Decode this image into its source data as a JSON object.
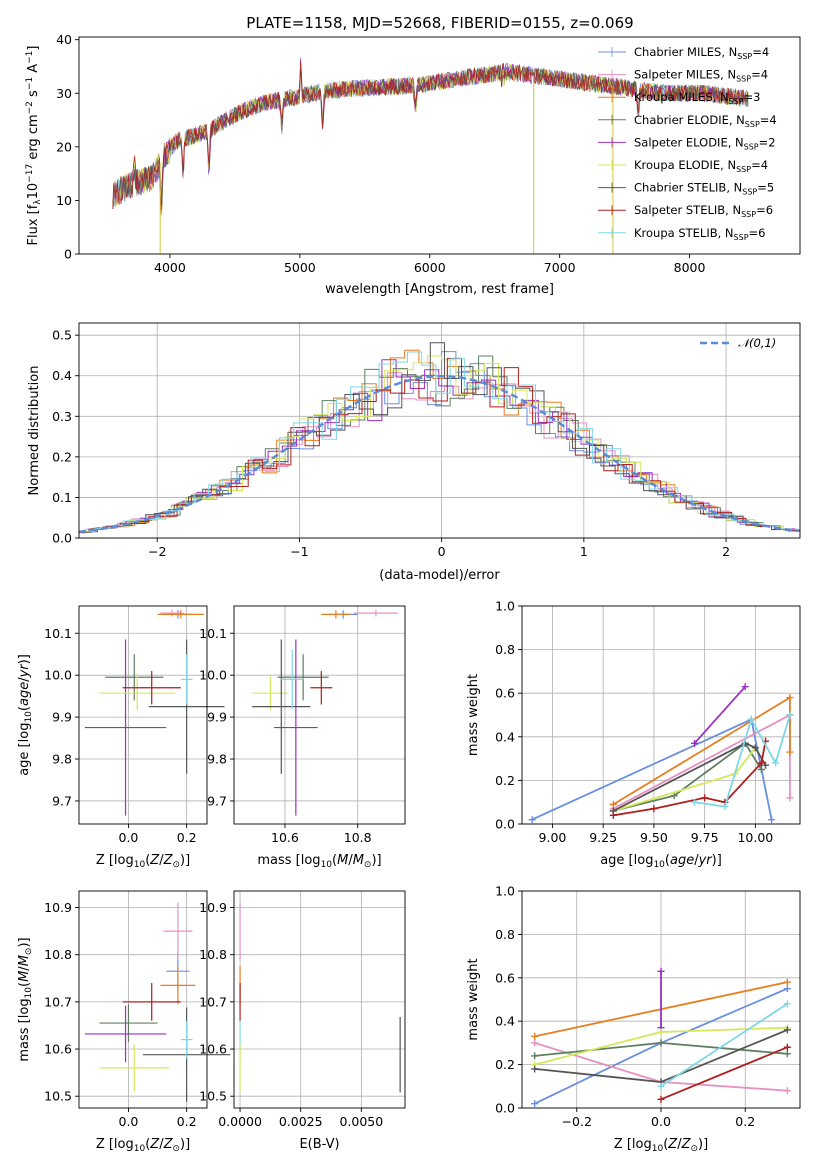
{
  "title": "PLATE=1158, MJD=52668, FIBERID=0155, z=0.069",
  "models": [
    {
      "name": "Chabrier MILES",
      "nssp": 4,
      "color": "#6a8fe0"
    },
    {
      "name": "Salpeter MILES",
      "nssp": 4,
      "color": "#e690c4"
    },
    {
      "name": "Kroupa MILES",
      "nssp": 3,
      "color": "#e67e22"
    },
    {
      "name": "Chabrier ELODIE",
      "nssp": 4,
      "color": "#5f7f62"
    },
    {
      "name": "Salpeter ELODIE",
      "nssp": 2,
      "color": "#9b30c4"
    },
    {
      "name": "Kroupa ELODIE",
      "nssp": 4,
      "color": "#d4e85a"
    },
    {
      "name": "Chabrier STELIB",
      "nssp": 5,
      "color": "#555555"
    },
    {
      "name": "Salpeter STELIB",
      "nssp": 6,
      "color": "#b01e1e"
    },
    {
      "name": "Kroupa STELIB",
      "nssp": 6,
      "color": "#7fd7e6"
    }
  ],
  "chart_data": [
    {
      "id": "spectrum",
      "type": "line",
      "xlabel": "wavelength [Angstrom, rest frame]",
      "ylabel": "Flux [f_λ 10^-17 erg cm^-2 s^-1 A^-1]",
      "xlim": [
        3300,
        8850
      ],
      "ylim": [
        0,
        40.5
      ],
      "xticks": [
        4000,
        5000,
        6000,
        7000,
        8000
      ],
      "yticks": [
        0,
        10,
        20,
        30,
        40
      ],
      "continuum": [
        [
          3560,
          11
        ],
        [
          3700,
          13
        ],
        [
          3850,
          14
        ],
        [
          3950,
          18
        ],
        [
          4050,
          21
        ],
        [
          4300,
          23
        ],
        [
          4500,
          26
        ],
        [
          4700,
          28
        ],
        [
          4900,
          29
        ],
        [
          5200,
          30.5
        ],
        [
          5500,
          31
        ],
        [
          5900,
          31.5
        ],
        [
          6300,
          33
        ],
        [
          6600,
          34
        ],
        [
          6900,
          33
        ],
        [
          7200,
          32
        ],
        [
          7500,
          31
        ],
        [
          7800,
          30
        ],
        [
          8100,
          30
        ],
        [
          8450,
          29
        ]
      ],
      "absorption_lines": [
        [
          3934,
          8
        ],
        [
          4101,
          6
        ],
        [
          4300,
          7
        ],
        [
          4861,
          5
        ],
        [
          5175,
          6
        ],
        [
          5890,
          4
        ],
        [
          6563,
          4
        ],
        [
          7605,
          4
        ]
      ],
      "emission_lines": [
        [
          3727,
          5
        ],
        [
          5007,
          6
        ],
        [
          6563,
          5
        ]
      ],
      "legend_loc": "upper right"
    },
    {
      "id": "residuals",
      "type": "step",
      "xlabel": "(data-model)/error",
      "ylabel": "Normed distribution",
      "xlim": [
        -2.55,
        2.52
      ],
      "ylim": [
        0,
        0.53
      ],
      "xticks": [
        -2,
        -1,
        0,
        1,
        2
      ],
      "yticks": [
        0,
        0.1,
        0.2,
        0.3,
        0.4,
        0.5
      ],
      "bin_width": 0.1,
      "reference": {
        "name": "𝒩(0,1)",
        "mean": 0,
        "sigma": 1,
        "color": "#5b8ad6"
      }
    },
    {
      "id": "age-vs-Z",
      "type": "scatter",
      "xlabel": "Z [log10(Z/Z⊙)]",
      "ylabel": "age [log10(age/yr)]",
      "xlim": [
        -0.17,
        0.27
      ],
      "ylim": [
        9.645,
        10.165
      ],
      "xticks": [
        0.0,
        0.2
      ],
      "yticks": [
        9.7,
        9.8,
        9.9,
        10.0,
        10.1
      ],
      "points": [
        {
          "model": 0,
          "x": 0.17,
          "y": 10.145,
          "xerr": 0.05,
          "yerr": 0.01
        },
        {
          "model": 1,
          "x": 0.15,
          "y": 10.148,
          "xerr": 0.04,
          "yerr": 0.008
        },
        {
          "model": 2,
          "x": 0.18,
          "y": 10.145,
          "xerr": 0.08,
          "yerr": 0.01
        },
        {
          "model": 3,
          "x": 0.02,
          "y": 9.995,
          "xerr": 0.1,
          "yerr": 0.055
        },
        {
          "model": 4,
          "x": -0.01,
          "y": 9.875,
          "xerr": 0.14,
          "yerr": 0.21
        },
        {
          "model": 5,
          "x": 0.03,
          "y": 9.957,
          "xerr": 0.13,
          "yerr": 0.04
        },
        {
          "model": 6,
          "x": 0.2,
          "y": 9.925,
          "xerr": 0.13,
          "yerr": 0.16
        },
        {
          "model": 7,
          "x": 0.08,
          "y": 9.97,
          "xerr": 0.1,
          "yerr": 0.04
        },
        {
          "model": 8,
          "x": 0.2,
          "y": 9.99,
          "xerr": 0.02,
          "yerr": 0.06
        }
      ]
    },
    {
      "id": "age-vs-mass",
      "type": "scatter",
      "xlabel": "mass [log10(M/M⊙)]",
      "ylabel": "",
      "xlim": [
        10.46,
        10.93
      ],
      "ylim": [
        9.645,
        10.165
      ],
      "xticks": [
        10.6,
        10.8
      ],
      "yticks": [
        9.7,
        9.8,
        9.9,
        10.0,
        10.1
      ],
      "points": [
        {
          "model": 0,
          "x": 10.76,
          "y": 10.145,
          "xerr": 0.04,
          "yerr": 0.01
        },
        {
          "model": 1,
          "x": 10.85,
          "y": 10.148,
          "xerr": 0.06,
          "yerr": 0.008
        },
        {
          "model": 2,
          "x": 10.74,
          "y": 10.145,
          "xerr": 0.04,
          "yerr": 0.01
        },
        {
          "model": 3,
          "x": 10.65,
          "y": 9.995,
          "xerr": 0.07,
          "yerr": 0.055
        },
        {
          "model": 4,
          "x": 10.63,
          "y": 9.875,
          "xerr": 0.06,
          "yerr": 0.21
        },
        {
          "model": 5,
          "x": 10.56,
          "y": 9.957,
          "xerr": 0.05,
          "yerr": 0.04
        },
        {
          "model": 6,
          "x": 10.59,
          "y": 9.925,
          "xerr": 0.08,
          "yerr": 0.16
        },
        {
          "model": 7,
          "x": 10.7,
          "y": 9.97,
          "xerr": 0.03,
          "yerr": 0.04
        },
        {
          "model": 8,
          "x": 10.62,
          "y": 9.99,
          "xerr": 0.03,
          "yerr": 0.07
        }
      ]
    },
    {
      "id": "weight-vs-age",
      "type": "line",
      "xlabel": "age [log10(age/yr)]",
      "ylabel": "mass weight",
      "xlim": [
        8.85,
        10.22
      ],
      "ylim": [
        0,
        1.0
      ],
      "xticks": [
        9.0,
        9.25,
        9.5,
        9.75,
        10.0
      ],
      "yticks": [
        0.0,
        0.2,
        0.4,
        0.6,
        0.8,
        1.0
      ],
      "series": [
        {
          "model": 0,
          "x": [
            8.9,
            9.98,
            10.08
          ],
          "y": [
            0.02,
            0.48,
            0.02
          ]
        },
        {
          "model": 1,
          "x": [
            9.3,
            10.17,
            10.17
          ],
          "y": [
            0.07,
            0.5,
            0.12
          ]
        },
        {
          "model": 2,
          "x": [
            9.3,
            10.17,
            10.17
          ],
          "y": [
            0.09,
            0.58,
            0.33
          ]
        },
        {
          "model": 3,
          "x": [
            9.3,
            9.6,
            9.95,
            10.03
          ],
          "y": [
            0.06,
            0.13,
            0.37,
            0.25
          ]
        },
        {
          "model": 4,
          "x": [
            9.7,
            9.95
          ],
          "y": [
            0.37,
            0.63
          ]
        },
        {
          "model": 5,
          "x": [
            9.3,
            9.9,
            10.0
          ],
          "y": [
            0.06,
            0.23,
            0.35
          ]
        },
        {
          "model": 6,
          "x": [
            9.3,
            9.95,
            10.0,
            10.05
          ],
          "y": [
            0.06,
            0.37,
            0.35,
            0.27
          ]
        },
        {
          "model": 7,
          "x": [
            9.3,
            9.5,
            9.75,
            9.85,
            10.03,
            10.05
          ],
          "y": [
            0.04,
            0.07,
            0.12,
            0.1,
            0.28,
            0.38
          ]
        },
        {
          "model": 8,
          "x": [
            9.7,
            9.85,
            9.98,
            10.1,
            10.17
          ],
          "y": [
            0.1,
            0.08,
            0.48,
            0.28,
            0.5
          ]
        }
      ]
    },
    {
      "id": "mass-vs-Z",
      "type": "scatter",
      "xlabel": "Z [log10(Z/Z⊙)]",
      "ylabel": "mass [log10(M/M⊙)]",
      "xlim": [
        -0.17,
        0.27
      ],
      "ylim": [
        10.475,
        10.935
      ],
      "xticks": [
        0.0,
        0.2
      ],
      "yticks": [
        10.5,
        10.6,
        10.7,
        10.8,
        10.9
      ],
      "points": [
        {
          "model": 0,
          "x": 0.17,
          "y": 10.765,
          "xerr": 0.04,
          "yerr": 0.04
        },
        {
          "model": 1,
          "x": 0.17,
          "y": 10.85,
          "xerr": 0.05,
          "yerr": 0.06
        },
        {
          "model": 2,
          "x": 0.17,
          "y": 10.735,
          "xerr": 0.06,
          "yerr": 0.04
        },
        {
          "model": 3,
          "x": 0.0,
          "y": 10.655,
          "xerr": 0.1,
          "yerr": 0.04
        },
        {
          "model": 4,
          "x": -0.01,
          "y": 10.632,
          "xerr": 0.14,
          "yerr": 0.06
        },
        {
          "model": 5,
          "x": 0.02,
          "y": 10.56,
          "xerr": 0.12,
          "yerr": 0.05
        },
        {
          "model": 6,
          "x": 0.2,
          "y": 10.588,
          "xerr": 0.15,
          "yerr": 0.1
        },
        {
          "model": 7,
          "x": 0.08,
          "y": 10.7,
          "xerr": 0.1,
          "yerr": 0.04
        },
        {
          "model": 8,
          "x": 0.2,
          "y": 10.62,
          "xerr": 0.02,
          "yerr": 0.04
        }
      ]
    },
    {
      "id": "mass-vs-ebv",
      "type": "scatter",
      "xlabel": "E(B-V)",
      "ylabel": "",
      "xlim": [
        -0.00025,
        0.0068
      ],
      "ylim": [
        10.475,
        10.935
      ],
      "xticks": [
        0.0,
        0.0025,
        0.005
      ],
      "xticklabels": [
        "0.0000",
        "0.0025",
        "0.0050"
      ],
      "yticks": [
        10.5,
        10.6,
        10.7,
        10.8,
        10.9
      ],
      "points": [
        {
          "model": 1,
          "x": 0.0,
          "y": 10.85,
          "xerr": 0,
          "yerr": 0.06
        },
        {
          "model": 2,
          "x": 0.0,
          "y": 10.735,
          "xerr": 0,
          "yerr": 0.04
        },
        {
          "model": 7,
          "x": 0.0,
          "y": 10.7,
          "xerr": 0,
          "yerr": 0.04
        },
        {
          "model": 8,
          "x": 0.0,
          "y": 10.62,
          "xerr": 0,
          "yerr": 0.04
        },
        {
          "model": 5,
          "x": 0.0,
          "y": 10.56,
          "xerr": 0,
          "yerr": 0.05
        },
        {
          "model": 6,
          "x": 0.0066,
          "y": 10.588,
          "xerr": 0,
          "yerr": 0.08
        }
      ]
    },
    {
      "id": "weight-vs-Z",
      "type": "line",
      "xlabel": "Z [log10(Z/Z⊙)]",
      "ylabel": "mass weight",
      "xlim": [
        -0.33,
        0.33
      ],
      "ylim": [
        0,
        1.0
      ],
      "xticks": [
        -0.2,
        0.0,
        0.2
      ],
      "yticks": [
        0.0,
        0.2,
        0.4,
        0.6,
        0.8,
        1.0
      ],
      "series": [
        {
          "model": 0,
          "x": [
            -0.3,
            0.0,
            0.3
          ],
          "y": [
            0.02,
            0.3,
            0.55
          ]
        },
        {
          "model": 1,
          "x": [
            -0.3,
            0.0,
            0.3
          ],
          "y": [
            0.3,
            0.12,
            0.08
          ]
        },
        {
          "model": 2,
          "x": [
            -0.3,
            0.3
          ],
          "y": [
            0.33,
            0.58
          ]
        },
        {
          "model": 3,
          "x": [
            -0.3,
            0.0,
            0.3
          ],
          "y": [
            0.24,
            0.3,
            0.25
          ]
        },
        {
          "model": 4,
          "x": [
            0.0,
            0.0
          ],
          "y": [
            0.37,
            0.63
          ]
        },
        {
          "model": 5,
          "x": [
            -0.3,
            0.0,
            0.3
          ],
          "y": [
            0.2,
            0.35,
            0.37
          ]
        },
        {
          "model": 6,
          "x": [
            -0.3,
            0.0,
            0.3
          ],
          "y": [
            0.18,
            0.12,
            0.36
          ]
        },
        {
          "model": 7,
          "x": [
            0.0,
            0.3
          ],
          "y": [
            0.04,
            0.28
          ]
        },
        {
          "model": 8,
          "x": [
            0.0,
            0.3
          ],
          "y": [
            0.1,
            0.48
          ]
        }
      ]
    }
  ]
}
